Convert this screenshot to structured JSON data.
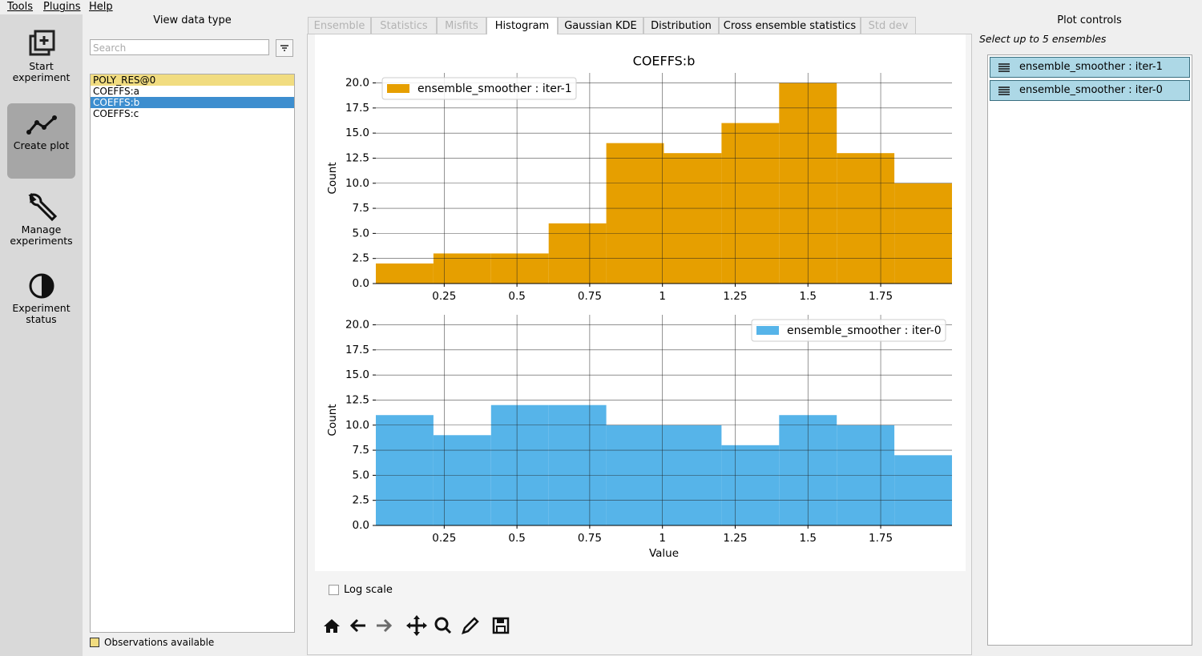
{
  "menu": [
    "Tools",
    "Plugins",
    "Help"
  ],
  "sidebar": [
    {
      "label": "Start experiment"
    },
    {
      "label": "Create plot"
    },
    {
      "label": "Manage experiments"
    },
    {
      "label": "Experiment status"
    }
  ],
  "data_types": {
    "title": "View data type",
    "search_placeholder": "Search",
    "items": [
      "POLY_RES@0",
      "COEFFS:a",
      "COEFFS:b",
      "COEFFS:c"
    ],
    "legend": "Observations available"
  },
  "tabs": [
    "Ensemble",
    "Statistics",
    "Misfits",
    "Histogram",
    "Gaussian KDE",
    "Distribution",
    "Cross ensemble statistics",
    "Std dev"
  ],
  "chart_data": [
    {
      "type": "histogram",
      "title": "COEFFS:b",
      "ylabel": "Count",
      "bins": [
        0.015,
        0.213,
        0.411,
        0.609,
        0.807,
        1.005,
        1.203,
        1.401,
        1.599,
        1.797,
        1.995
      ],
      "series": [
        {
          "name": "ensemble_smoother : iter-1",
          "color": "#e69f00",
          "values": [
            2,
            3,
            3,
            6,
            14,
            13,
            16,
            20,
            13,
            10
          ]
        }
      ],
      "xlim": [
        0.015,
        1.995
      ],
      "xticks": [
        0.25,
        0.5,
        0.75,
        1,
        1.25,
        1.5,
        1.75
      ],
      "ylim": [
        0,
        21
      ],
      "yticks": [
        {
          "value": 0,
          "label": "0.0"
        },
        2.5,
        {
          "value": 5,
          "label": "5.0"
        },
        7.5,
        {
          "value": 10,
          "label": "10.0"
        },
        12.5,
        {
          "value": 15,
          "label": "15.0"
        },
        17.5,
        {
          "value": 20,
          "label": "20.0"
        }
      ],
      "grid": true,
      "legend": "upper left"
    },
    {
      "type": "histogram",
      "ylabel": "Count",
      "xlabel": "Value",
      "bins": [
        0.015,
        0.213,
        0.411,
        0.609,
        0.807,
        1.005,
        1.203,
        1.401,
        1.599,
        1.797,
        1.995
      ],
      "series": [
        {
          "name": "ensemble_smoother : iter-0",
          "color": "#56b4e9",
          "values": [
            11,
            9,
            12,
            12,
            10,
            10,
            8,
            11,
            10,
            7
          ]
        }
      ],
      "xlim": [
        0.015,
        1.995
      ],
      "xticks": [
        0.25,
        0.5,
        0.75,
        1,
        1.25,
        1.5,
        1.75
      ],
      "ylim": [
        0,
        21
      ],
      "yticks": [
        {
          "value": 0,
          "label": "0.0"
        },
        2.5,
        {
          "value": 5,
          "label": "5.0"
        },
        7.5,
        {
          "value": 10,
          "label": "10.0"
        },
        12.5,
        {
          "value": 15,
          "label": "15.0"
        },
        17.5,
        {
          "value": 20,
          "label": "20.0"
        }
      ],
      "grid": true,
      "legend": "upper right"
    }
  ],
  "log_scale": {
    "label": "Log scale"
  },
  "plot_controls": {
    "title": "Plot controls",
    "hint": "Select up to 5 ensembles",
    "ensembles": [
      "ensemble_smoother : iter-1",
      "ensemble_smoother : iter-0"
    ]
  }
}
